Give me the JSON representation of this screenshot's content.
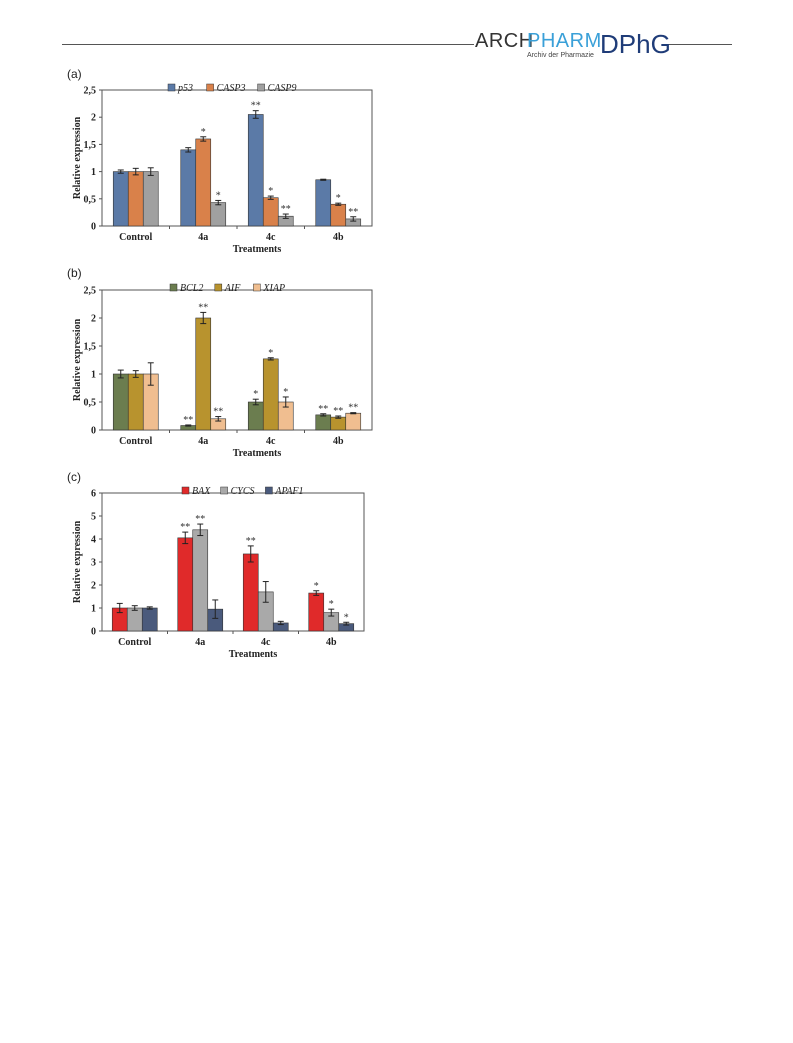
{
  "header": {
    "logo_arch": "ARCH",
    "logo_pharm": "PHARM",
    "logo_subtitle": "Archiv der Pharmazie",
    "logo_dphg": "DPhG"
  },
  "chart_data": [
    {
      "type": "bar",
      "panel_label": "(a)",
      "categories": [
        "Control",
        "4a",
        "4c",
        "4b"
      ],
      "xlabel": "Treatments",
      "ylabel": "Relative expression",
      "ylim": [
        0,
        2.5
      ],
      "yticks": [
        "0",
        "0,5",
        "1",
        "1,5",
        "2",
        "2,5"
      ],
      "legend_position": "top",
      "series": [
        {
          "name": "p53",
          "color": "#5b7aa7",
          "values": [
            1.0,
            1.4,
            2.05,
            0.85
          ],
          "errors": [
            0.03,
            0.04,
            0.07,
            0.01
          ],
          "marks": [
            "",
            "",
            "**",
            ""
          ]
        },
        {
          "name": "CASP3",
          "color": "#d9814a",
          "values": [
            1.0,
            1.6,
            0.52,
            0.4
          ],
          "errors": [
            0.06,
            0.04,
            0.03,
            0.02
          ],
          "marks": [
            "",
            "*",
            "*",
            "*"
          ]
        },
        {
          "name": "CASP9",
          "color": "#a0a0a0",
          "values": [
            1.0,
            0.43,
            0.18,
            0.13
          ],
          "errors": [
            0.07,
            0.04,
            0.04,
            0.04
          ],
          "marks": [
            "",
            "*",
            "**",
            "**"
          ]
        }
      ]
    },
    {
      "type": "bar",
      "panel_label": "(b)",
      "categories": [
        "Control",
        "4a",
        "4c",
        "4b"
      ],
      "xlabel": "Treatments",
      "ylabel": "Relative expression",
      "ylim": [
        0,
        2.5
      ],
      "yticks": [
        "0",
        "0,5",
        "1",
        "1,5",
        "2",
        "2,5"
      ],
      "legend_position": "top",
      "series": [
        {
          "name": "BCL2",
          "color": "#6b7d4f",
          "values": [
            1.0,
            0.08,
            0.5,
            0.27
          ],
          "errors": [
            0.07,
            0.01,
            0.05,
            0.02
          ],
          "marks": [
            "",
            "**",
            "*",
            "**"
          ]
        },
        {
          "name": "AIF",
          "color": "#b8932e",
          "values": [
            1.0,
            2.0,
            1.27,
            0.23
          ],
          "errors": [
            0.06,
            0.1,
            0.02,
            0.02
          ],
          "marks": [
            "",
            "**",
            "*",
            "**"
          ]
        },
        {
          "name": "XIAP",
          "color": "#f0be90",
          "values": [
            1.0,
            0.2,
            0.5,
            0.3
          ],
          "errors": [
            0.2,
            0.04,
            0.09,
            0.01
          ],
          "marks": [
            "",
            "**",
            "*",
            "**"
          ]
        }
      ]
    },
    {
      "type": "bar",
      "panel_label": "(c)",
      "categories": [
        "Control",
        "4a",
        "4c",
        "4b"
      ],
      "xlabel": "Treatments",
      "ylabel": "Relative expression",
      "ylim": [
        0,
        6
      ],
      "yticks": [
        "0",
        "1",
        "2",
        "3",
        "4",
        "5",
        "6"
      ],
      "legend_position": "top",
      "series": [
        {
          "name": "BAX",
          "color": "#e02a2a",
          "values": [
            1.0,
            4.05,
            3.35,
            1.65
          ],
          "errors": [
            0.2,
            0.25,
            0.35,
            0.1
          ],
          "marks": [
            "",
            "**",
            "**",
            "*"
          ]
        },
        {
          "name": "CYCS",
          "color": "#a9a9a9",
          "values": [
            1.0,
            4.4,
            1.7,
            0.8
          ],
          "errors": [
            0.1,
            0.25,
            0.45,
            0.15
          ],
          "marks": [
            "",
            "**",
            "",
            "*"
          ]
        },
        {
          "name": "APAF1",
          "color": "#4a5a7c",
          "values": [
            1.0,
            0.95,
            0.35,
            0.32
          ],
          "errors": [
            0.05,
            0.4,
            0.07,
            0.06
          ],
          "marks": [
            "",
            "",
            "",
            "*"
          ]
        }
      ]
    }
  ]
}
